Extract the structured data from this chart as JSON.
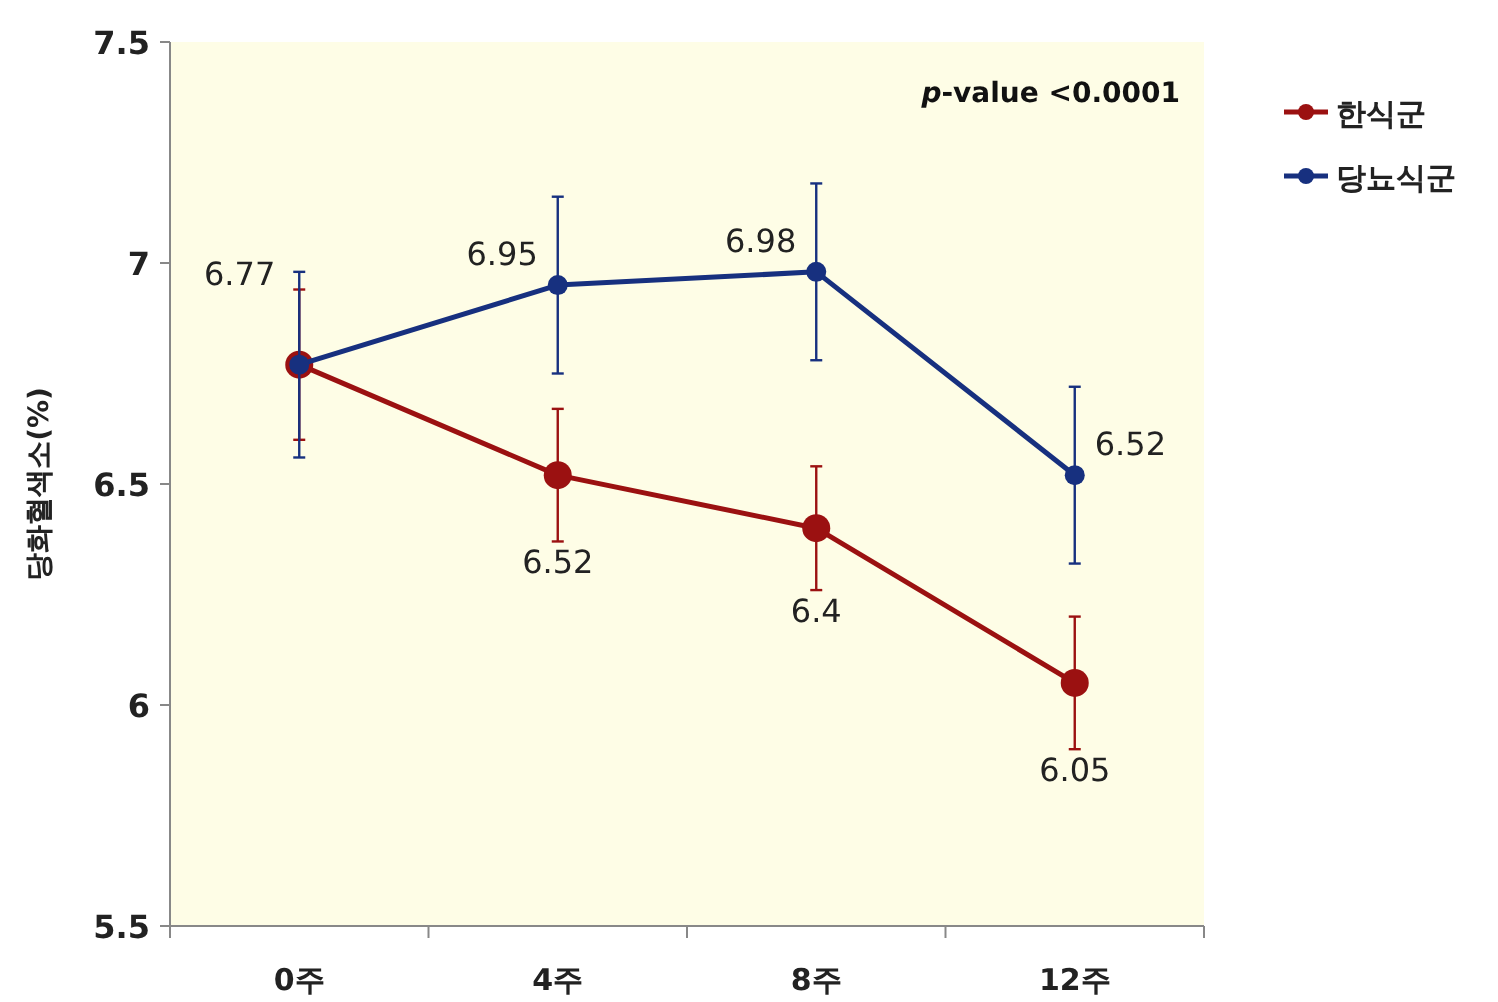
{
  "chart_data": {
    "type": "line",
    "ylabel": "당화혈색소(%)",
    "categories": [
      "0주",
      "4주",
      "8주",
      "12주"
    ],
    "series": [
      {
        "name": "한식군",
        "color": "#9b1111",
        "values": [
          6.77,
          6.52,
          6.4,
          6.05
        ],
        "errors": [
          0.17,
          0.15,
          0.14,
          0.15
        ],
        "value_labels": [
          null,
          "6.52",
          "6.4",
          "6.05"
        ]
      },
      {
        "name": "당뇨식군",
        "color": "#17307f",
        "values": [
          6.77,
          6.95,
          6.98,
          6.52
        ],
        "errors": [
          0.21,
          0.2,
          0.2,
          0.2
        ],
        "value_labels": [
          "6.77",
          "6.95",
          "6.98",
          "6.52"
        ]
      }
    ],
    "ylim": [
      5.5,
      7.5
    ],
    "yticks": [
      5.5,
      6,
      6.5,
      7,
      7.5
    ],
    "annotations": [
      "p-value <0.0001"
    ],
    "legend": "right",
    "marker": "circle"
  }
}
